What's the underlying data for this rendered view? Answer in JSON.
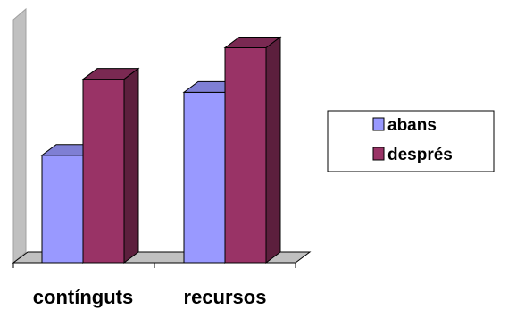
{
  "chart_data": {
    "type": "bar",
    "three_d": true,
    "categories": [
      "contínguts",
      "recursos"
    ],
    "series": [
      {
        "name": "abans",
        "values": [
          4.1,
          6.5
        ],
        "color": "#9999ff",
        "top_color": "#7f7fd4",
        "side_color": "#6b6bb8"
      },
      {
        "name": "després",
        "values": [
          7.0,
          8.2
        ],
        "color": "#993366",
        "top_color": "#7a2952",
        "side_color": "#5c1f3d"
      }
    ],
    "ylim": [
      0,
      9
    ],
    "grid": false,
    "legend_position": "right",
    "wall_color": "#c0c0c0",
    "floor_color": "#c0c0c0"
  }
}
